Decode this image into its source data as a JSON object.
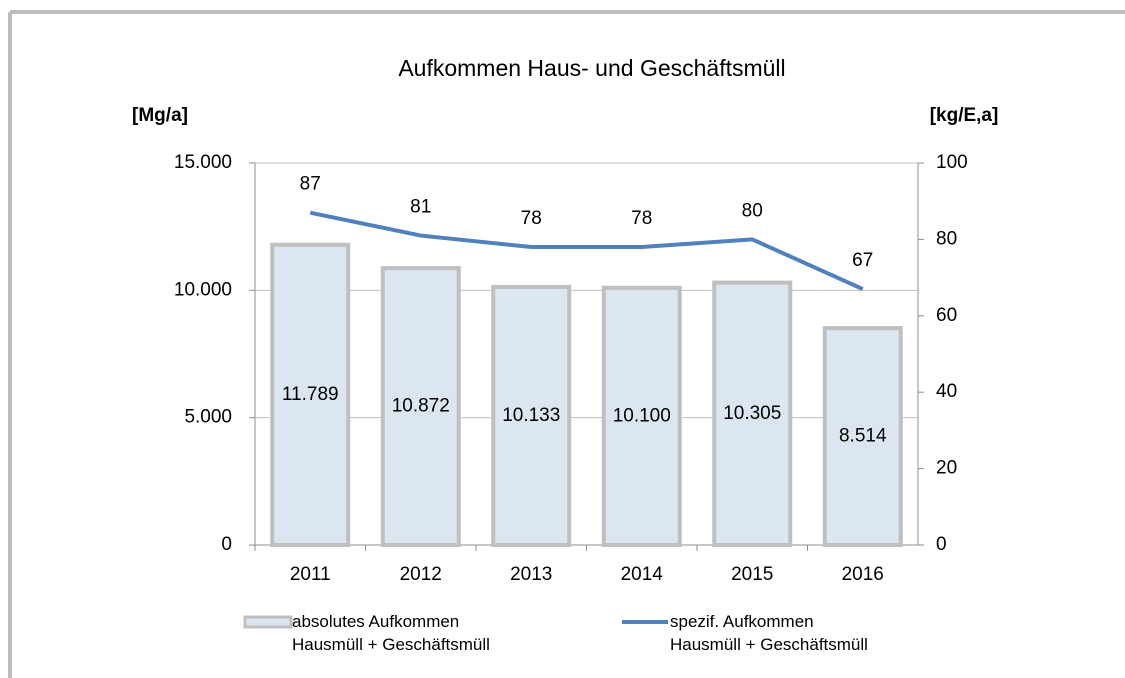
{
  "chart_data": {
    "type": "bar",
    "title": "Aufkommen Haus- und Geschäftsmüll",
    "ylabel": "[Mg/a]",
    "y2label": "[kg/E,a]",
    "categories": [
      "2011",
      "2012",
      "2013",
      "2014",
      "2015",
      "2016"
    ],
    "series": [
      {
        "name": "absolutes Aufkommen\nHausmüll + Geschäftsmüll",
        "type": "bar",
        "color": "#dce6f1",
        "edge_color": "#bfbfbf",
        "values": [
          11789,
          10872,
          10133,
          10100,
          10305,
          8514
        ],
        "value_labels": [
          "11.789",
          "10.872",
          "10.133",
          "10.100",
          "10.305",
          "8.514"
        ]
      },
      {
        "name": "spezif. Aufkommen\nHausmüll + Geschäftsmüll",
        "type": "line",
        "axis": "y2",
        "color": "#4f81bd",
        "values": [
          87,
          81,
          78,
          78,
          80,
          67
        ]
      }
    ],
    "ylim": [
      0,
      15000
    ],
    "yticks": [
      0,
      {
        "value": 5000,
        "label": "5.000"
      },
      {
        "value": 10000,
        "label": "10.000"
      },
      {
        "value": 15000,
        "label": "15.000"
      }
    ],
    "y2lim": [
      0,
      100
    ],
    "y2ticks": [
      0,
      20,
      40,
      60,
      80,
      100
    ],
    "grid": true,
    "legend": "bottom"
  }
}
